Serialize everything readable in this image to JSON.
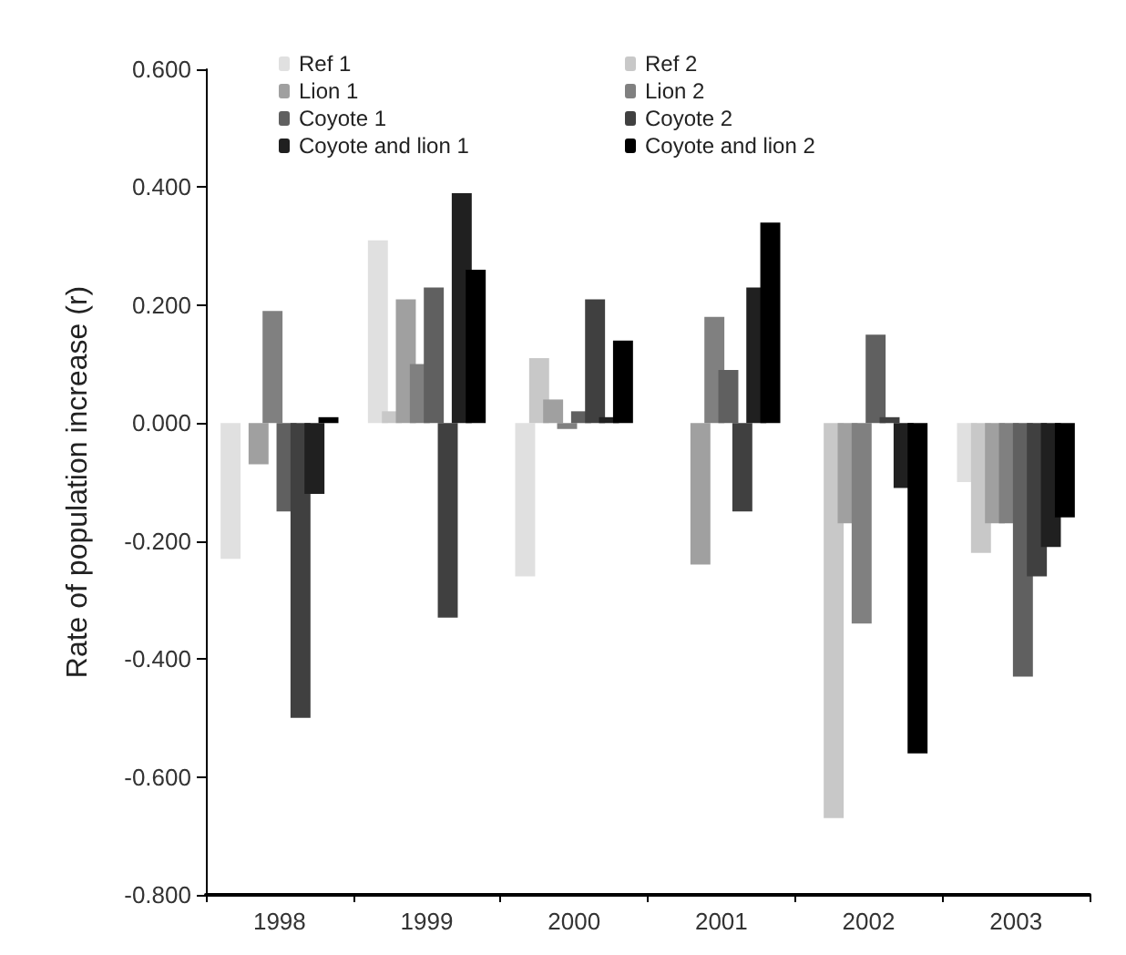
{
  "chart_data": {
    "type": "bar",
    "ylabel": "Rate of population increase (r)",
    "categories": [
      "1998",
      "1999",
      "2000",
      "2001",
      "2002",
      "2003"
    ],
    "series": [
      {
        "name": "Ref 1",
        "color": "#e0e0e0",
        "values": [
          -0.23,
          0.31,
          -0.26,
          0.0,
          0.0,
          -0.1
        ]
      },
      {
        "name": "Ref 2",
        "color": "#c8c8c8",
        "values": [
          0.0,
          0.02,
          0.11,
          0.0,
          -0.67,
          -0.22
        ]
      },
      {
        "name": "Lion 1",
        "color": "#a0a0a0",
        "values": [
          -0.07,
          0.21,
          0.04,
          -0.24,
          -0.17,
          -0.17
        ]
      },
      {
        "name": "Lion 2",
        "color": "#808080",
        "values": [
          0.19,
          0.1,
          -0.01,
          0.18,
          -0.34,
          -0.17
        ]
      },
      {
        "name": "Coyote 1",
        "color": "#606060",
        "values": [
          -0.15,
          0.23,
          0.02,
          0.09,
          0.15,
          -0.43
        ]
      },
      {
        "name": "Coyote 2",
        "color": "#404040",
        "values": [
          -0.5,
          -0.33,
          0.21,
          -0.15,
          0.01,
          -0.26
        ]
      },
      {
        "name": "Coyote and lion 1",
        "color": "#202020",
        "values": [
          -0.12,
          0.39,
          0.01,
          0.23,
          -0.11,
          -0.21
        ]
      },
      {
        "name": "Coyote and lion 2",
        "color": "#000000",
        "values": [
          0.01,
          0.26,
          0.14,
          0.34,
          -0.56,
          -0.16
        ]
      }
    ],
    "ylim": [
      -0.8,
      0.6
    ],
    "yticks": [
      {
        "value": -0.8,
        "label": "-0.800"
      },
      {
        "value": -0.6,
        "label": "-0.600"
      },
      {
        "value": -0.4,
        "label": "-0.400"
      },
      {
        "value": -0.2,
        "label": "-0.200"
      },
      {
        "value": 0,
        "label": "0.000"
      },
      {
        "value": 0.2,
        "label": "0.200"
      },
      {
        "value": 0.4,
        "label": "0.400"
      },
      {
        "value": 0.6,
        "label": "0.600"
      }
    ],
    "legend": "top left",
    "grid": false
  }
}
